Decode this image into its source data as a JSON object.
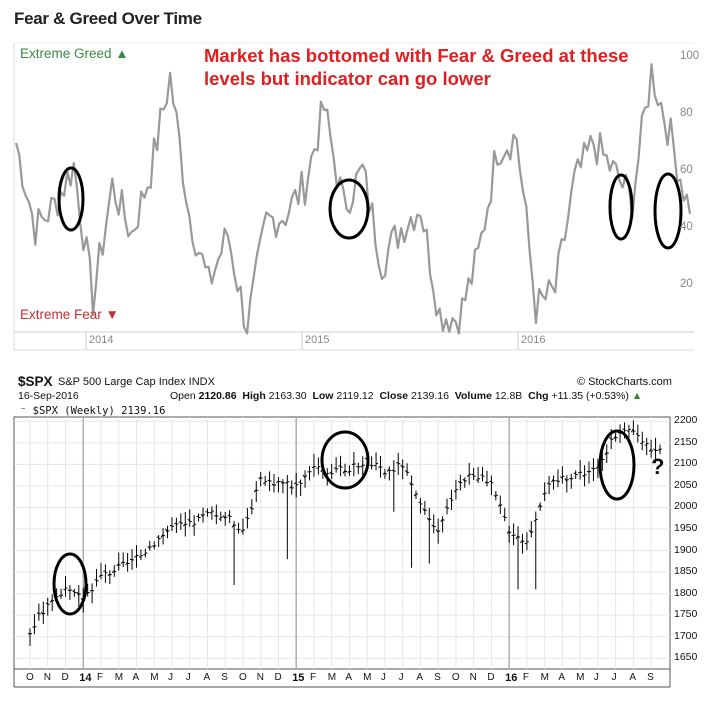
{
  "fear_greed": {
    "title": "Fear & Greed Over Time",
    "label_greed": "Extreme Greed ▲",
    "label_fear": "Extreme Fear ▼",
    "annotation": "Market has bottomed with Fear & Greed at these levels but indicator can go lower",
    "colors": {
      "line": "#999999",
      "greed": "#3a8a4a",
      "fear": "#c03030",
      "annotation": "#e02020",
      "circle": "#000000"
    }
  },
  "spx": {
    "symbol": "$SPX",
    "name": "S&P 500 Large Cap Index INDX",
    "credit": "© StockCharts.com",
    "date": "16-Sep-2016",
    "open_label": "Open",
    "open": "2120.86",
    "high_label": "High",
    "high": "2163.30",
    "low_label": "Low",
    "low": "2119.12",
    "close_label": "Close",
    "close": "2139.16",
    "volume_label": "Volume",
    "volume": "12.8B",
    "chg_label": "Chg",
    "chg": "+11.35 (+0.53%)",
    "chg_arrow": "▲",
    "legend": "⁻ $SPX (Weekly) 2139.16",
    "question": "?",
    "colors": {
      "bars": "#000000",
      "grid": "#e6e6e6",
      "circle": "#000000"
    }
  },
  "chart_data": [
    {
      "type": "line",
      "title": "Fear & Greed Over Time",
      "ylim": [
        0,
        100
      ],
      "y_ticks": [
        "100",
        "80",
        "60",
        "40",
        "20"
      ],
      "x_tick_labels": [
        "2014",
        "2015",
        "2016"
      ],
      "x": [
        "2013-10",
        "2013-11",
        "2013-12",
        "2014-01",
        "2014-02",
        "2014-03",
        "2014-04",
        "2014-05",
        "2014-06",
        "2014-07",
        "2014-08",
        "2014-09",
        "2014-10",
        "2014-11",
        "2014-12",
        "2015-01",
        "2015-02",
        "2015-03",
        "2015-04",
        "2015-05",
        "2015-06",
        "2015-07",
        "2015-08",
        "2015-09",
        "2015-10",
        "2015-11",
        "2015-12",
        "2016-01",
        "2016-02",
        "2016-03",
        "2016-04",
        "2016-05",
        "2016-06",
        "2016-07",
        "2016-08",
        "2016-09"
      ],
      "values": [
        70,
        40,
        48,
        62,
        15,
        55,
        38,
        60,
        93,
        45,
        20,
        38,
        5,
        42,
        45,
        55,
        82,
        48,
        60,
        28,
        40,
        48,
        10,
        8,
        30,
        68,
        72,
        12,
        18,
        56,
        70,
        60,
        50,
        95,
        72,
        45
      ],
      "grid": false,
      "annotations": [
        "Market has bottomed with Fear & Greed at these levels but indicator can go lower"
      ]
    },
    {
      "type": "bar",
      "title": "$SPX S&P 500 Large Cap Index INDX",
      "subtitle": "$SPX (Weekly) 2139.16",
      "ylim": [
        1625,
        2210
      ],
      "y_ticks": [
        "2200",
        "2150",
        "2100",
        "2050",
        "2000",
        "1950",
        "1900",
        "1850",
        "1800",
        "1750",
        "1700",
        "1650"
      ],
      "x_tick_labels": [
        "O",
        "N",
        "D",
        "14",
        "F",
        "M",
        "A",
        "M",
        "J",
        "J",
        "A",
        "S",
        "O",
        "N",
        "D",
        "15",
        "F",
        "M",
        "A",
        "M",
        "J",
        "J",
        "A",
        "S",
        "O",
        "N",
        "D",
        "16",
        "F",
        "M",
        "A",
        "M",
        "J",
        "J",
        "A",
        "S"
      ],
      "x": [
        "2013-10",
        "2013-11",
        "2013-12",
        "2014-01",
        "2014-02",
        "2014-03",
        "2014-04",
        "2014-05",
        "2014-06",
        "2014-07",
        "2014-08",
        "2014-09",
        "2014-10",
        "2014-11",
        "2014-12",
        "2015-01",
        "2015-02",
        "2015-03",
        "2015-04",
        "2015-05",
        "2015-06",
        "2015-07",
        "2015-08",
        "2015-09",
        "2015-10",
        "2015-11",
        "2015-12",
        "2016-01",
        "2016-02",
        "2016-03",
        "2016-04",
        "2016-05",
        "2016-06",
        "2016-07",
        "2016-08",
        "2016-09"
      ],
      "values": [
        1710,
        1780,
        1805,
        1790,
        1840,
        1860,
        1880,
        1920,
        1955,
        1960,
        1985,
        1980,
        1950,
        2060,
        2060,
        2050,
        2100,
        2080,
        2090,
        2110,
        2080,
        2100,
        2000,
        1940,
        2050,
        2080,
        2050,
        1950,
        1920,
        2040,
        2070,
        2080,
        2090,
        2170,
        2175,
        2139
      ],
      "grid": true
    }
  ]
}
